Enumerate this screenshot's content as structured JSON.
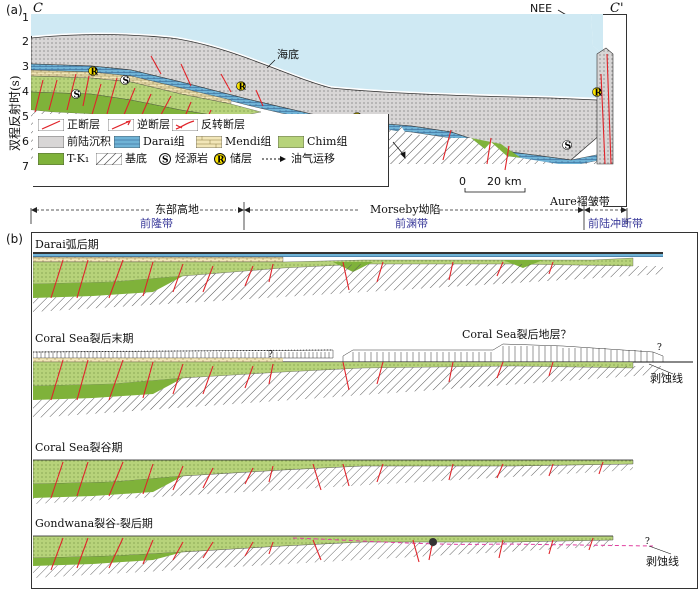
{
  "panel_a": {
    "label": "(a)",
    "section_left": "C",
    "section_right": "C'",
    "direction": "NEE",
    "y_axis_label": "双程反射时(s)",
    "y_ticks": [
      "1",
      "2",
      "3",
      "4",
      "5",
      "6",
      "7"
    ],
    "seafloor": "海底",
    "scale_label": "0      20 km",
    "aure_label": "Aure褶皱带",
    "legend": [
      {
        "label": "正断层",
        "symbol": "normal-fault"
      },
      {
        "label": "逆断层",
        "symbol": "reverse-fault"
      },
      {
        "label": "反转断层",
        "symbol": "inversion-fault"
      },
      {
        "label": "前陆沉积",
        "symbol": "foreland"
      },
      {
        "label": "Darai组",
        "symbol": "darai"
      },
      {
        "label": "Mendi组",
        "symbol": "mendi"
      },
      {
        "label": "Chim组",
        "symbol": "chim"
      },
      {
        "label": "T-K₁",
        "symbol": "tk1"
      },
      {
        "label": "基底",
        "symbol": "basement"
      },
      {
        "label": "烃源岩",
        "symbol": "source"
      },
      {
        "label": "储层",
        "symbol": "reservoir"
      },
      {
        "label": "油气运移",
        "symbol": "migration"
      }
    ],
    "zones": [
      {
        "top": "东部高地",
        "bottom": "前隆带"
      },
      {
        "top": "Morseby坳陷",
        "bottom": "前渊带"
      },
      {
        "top": "",
        "bottom": "前陆冲断带"
      }
    ]
  },
  "panel_b": {
    "label": "(b)",
    "stages": [
      {
        "title": "Darai弧后期"
      },
      {
        "title": "Coral Sea裂后末期",
        "annotation": "Coral Sea裂后地层？",
        "erosion": "剥蚀线"
      },
      {
        "title": "Coral Sea裂谷期"
      },
      {
        "title": "Gondwana裂谷-裂后期",
        "erosion": "剥蚀线"
      }
    ]
  },
  "colors": {
    "sea": "#bfe3f0",
    "foreland": "#d8d6d6",
    "chim": "#b7d37a",
    "tk1": "#7fb23a",
    "fault": "#e0242a",
    "darai": "#6fb3d6",
    "mendi": "#f2e6b8",
    "zone": "#3a3a9a",
    "erosion": "#e040a0"
  }
}
